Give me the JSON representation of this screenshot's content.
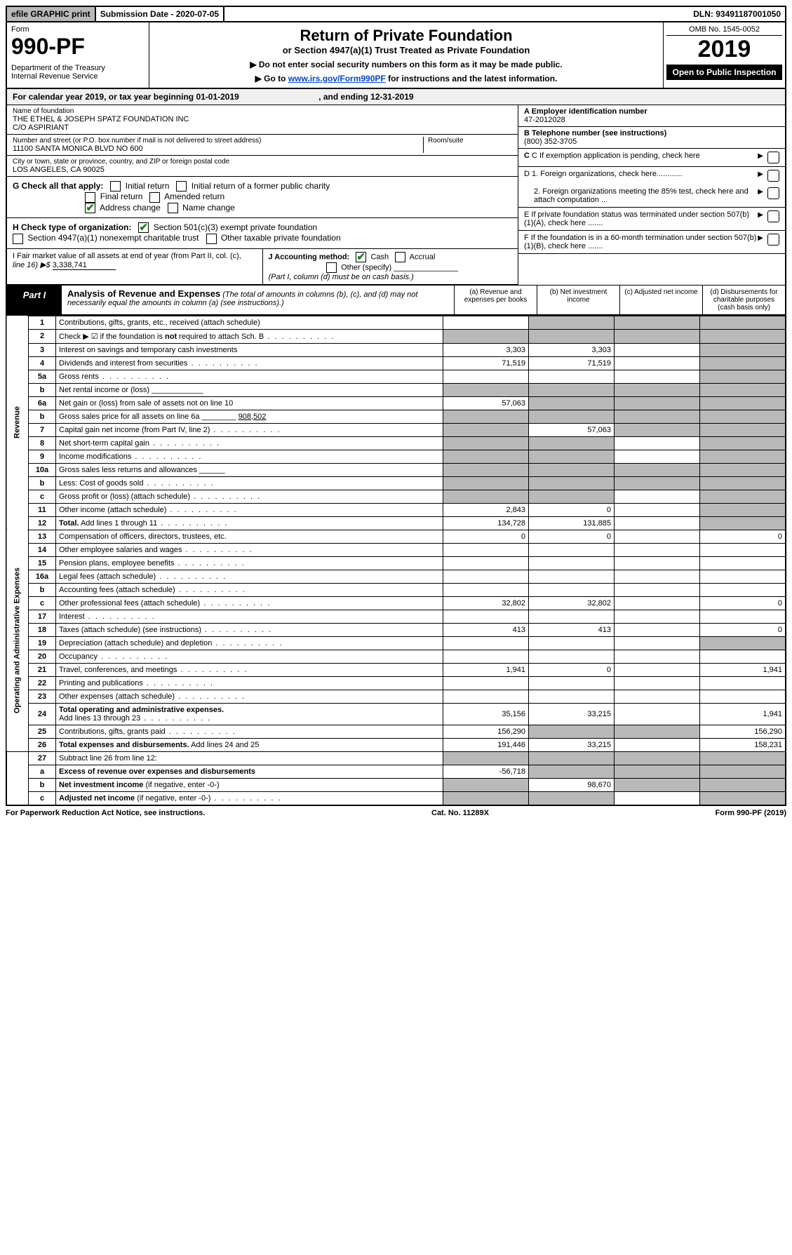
{
  "top": {
    "efile": "efile GRAPHIC print",
    "submission": "Submission Date - 2020-07-05",
    "dln": "DLN: 93491187001050"
  },
  "header": {
    "form_word": "Form",
    "form_num": "990-PF",
    "dept": "Department of the Treasury\nInternal Revenue Service",
    "title": "Return of Private Foundation",
    "subtitle": "or Section 4947(a)(1) Trust Treated as Private Foundation",
    "notice1": "▶ Do not enter social security numbers on this form as it may be made public.",
    "notice2_pre": "▶ Go to ",
    "notice2_link": "www.irs.gov/Form990PF",
    "notice2_post": " for instructions and the latest information.",
    "omb": "OMB No. 1545-0052",
    "year": "2019",
    "open": "Open to Public Inspection"
  },
  "calyear": "For calendar year 2019, or tax year beginning 01-01-2019                                  , and ending 12-31-2019",
  "info": {
    "name_label": "Name of foundation",
    "name": "THE ETHEL & JOSEPH SPATZ FOUNDATION INC\nC/O ASPIRIANT",
    "addr_label": "Number and street (or P.O. box number if mail is not delivered to street address)",
    "addr": "11100 SANTA MONICA BLVD NO 600",
    "room_label": "Room/suite",
    "city_label": "City or town, state or province, country, and ZIP or foreign postal code",
    "city": "LOS ANGELES, CA  90025",
    "a_label": "A Employer identification number",
    "a_val": "47-2012028",
    "b_label": "B Telephone number (see instructions)",
    "b_val": "(800) 352-3705",
    "c_label": "C If exemption application is pending, check here",
    "d1": "D 1. Foreign organizations, check here............",
    "d2": "2. Foreign organizations meeting the 85% test, check here and attach computation ...",
    "e": "E  If private foundation status was terminated under section 507(b)(1)(A), check here .......",
    "f": "F  If the foundation is in a 60-month termination under section 507(b)(1)(B), check here ......."
  },
  "g": {
    "label": "G Check all that apply:",
    "opts": [
      "Initial return",
      "Initial return of a former public charity",
      "Final return",
      "Amended return",
      "Address change",
      "Name change"
    ]
  },
  "h": {
    "label": "H Check type of organization:",
    "opt1": "Section 501(c)(3) exempt private foundation",
    "opt2": "Section 4947(a)(1) nonexempt charitable trust",
    "opt3": "Other taxable private foundation"
  },
  "i": {
    "label": "I Fair market value of all assets at end of year (from Part II, col. (c),",
    "line16": "line 16) ▶$ ",
    "val": "3,338,741"
  },
  "j": {
    "label": "J Accounting method:",
    "cash": "Cash",
    "accrual": "Accrual",
    "other": "Other (specify)",
    "note": "(Part I, column (d) must be on cash basis.)"
  },
  "part1": {
    "tab": "Part I",
    "desc_b": "Analysis of Revenue and Expenses",
    "desc_i": " (The total of amounts in columns (b), (c), and (d) may not necessarily equal the amounts in column (a) (see instructions).)",
    "col_a": "(a)    Revenue and expenses per books",
    "col_b": "(b)   Net investment income",
    "col_c": "(c)   Adjusted net income",
    "col_d": "(d)   Disbursements for charitable purposes (cash basis only)"
  },
  "rows": [
    {
      "sec": "rev",
      "n": "1",
      "d": "Contributions, gifts, grants, etc., received (attach schedule)",
      "a": "",
      "b": "grey",
      "c": "grey",
      "e": "grey"
    },
    {
      "sec": "rev",
      "n": "2",
      "d": "Check ▶ ☑ if the foundation is <b>not</b> required to attach Sch. B",
      "dots": true,
      "a": "grey",
      "b": "grey",
      "c": "grey",
      "e": "grey"
    },
    {
      "sec": "rev",
      "n": "3",
      "d": "Interest on savings and temporary cash investments",
      "a": "3,303",
      "b": "3,303",
      "c": "",
      "e": "grey"
    },
    {
      "sec": "rev",
      "n": "4",
      "d": "Dividends and interest from securities",
      "dots": true,
      "a": "71,519",
      "b": "71,519",
      "c": "",
      "e": "grey"
    },
    {
      "sec": "rev",
      "n": "5a",
      "d": "Gross rents",
      "dots": true,
      "a": "",
      "b": "",
      "c": "",
      "e": "grey"
    },
    {
      "sec": "rev",
      "n": "b",
      "d": "Net rental income or (loss) ____________",
      "a": "grey",
      "b": "grey",
      "c": "grey",
      "e": "grey"
    },
    {
      "sec": "rev",
      "n": "6a",
      "d": "Net gain or (loss) from sale of assets not on line 10",
      "a": "57,063",
      "b": "grey",
      "c": "grey",
      "e": "grey"
    },
    {
      "sec": "rev",
      "n": "b",
      "d": "Gross sales price for all assets on line 6a ________ <u>908,502</u>",
      "a": "grey",
      "b": "grey",
      "c": "grey",
      "e": "grey"
    },
    {
      "sec": "rev",
      "n": "7",
      "d": "Capital gain net income (from Part IV, line 2)",
      "dots": true,
      "a": "grey",
      "b": "57,063",
      "c": "grey",
      "e": "grey"
    },
    {
      "sec": "rev",
      "n": "8",
      "d": "Net short-term capital gain",
      "dots": true,
      "a": "grey",
      "b": "grey",
      "c": "",
      "e": "grey"
    },
    {
      "sec": "rev",
      "n": "9",
      "d": "Income modifications",
      "dots": true,
      "a": "grey",
      "b": "grey",
      "c": "",
      "e": "grey"
    },
    {
      "sec": "rev",
      "n": "10a",
      "d": "Gross sales less returns and allowances ______",
      "a": "grey",
      "b": "grey",
      "c": "grey",
      "e": "grey"
    },
    {
      "sec": "rev",
      "n": "b",
      "d": "Less: Cost of goods sold",
      "dots": true,
      "a": "grey",
      "b": "grey",
      "c": "grey",
      "e": "grey"
    },
    {
      "sec": "rev",
      "n": "c",
      "d": "Gross profit or (loss) (attach schedule)",
      "dots": true,
      "a": "grey",
      "b": "grey",
      "c": "",
      "e": "grey"
    },
    {
      "sec": "rev",
      "n": "11",
      "d": "Other income (attach schedule)",
      "dots": true,
      "a": "2,843",
      "b": "0",
      "c": "",
      "e": "grey"
    },
    {
      "sec": "rev",
      "n": "12",
      "d": "<b>Total.</b> Add lines 1 through 11",
      "dots": true,
      "a": "134,728",
      "b": "131,885",
      "c": "",
      "e": "grey"
    },
    {
      "sec": "exp",
      "n": "13",
      "d": "Compensation of officers, directors, trustees, etc.",
      "a": "0",
      "b": "0",
      "c": "",
      "e": "0"
    },
    {
      "sec": "exp",
      "n": "14",
      "d": "Other employee salaries and wages",
      "dots": true,
      "a": "",
      "b": "",
      "c": "",
      "e": ""
    },
    {
      "sec": "exp",
      "n": "15",
      "d": "Pension plans, employee benefits",
      "dots": true,
      "a": "",
      "b": "",
      "c": "",
      "e": ""
    },
    {
      "sec": "exp",
      "n": "16a",
      "d": "Legal fees (attach schedule)",
      "dots": true,
      "a": "",
      "b": "",
      "c": "",
      "e": ""
    },
    {
      "sec": "exp",
      "n": "b",
      "d": "Accounting fees (attach schedule)",
      "dots": true,
      "a": "",
      "b": "",
      "c": "",
      "e": ""
    },
    {
      "sec": "exp",
      "n": "c",
      "d": "Other professional fees (attach schedule)",
      "dots": true,
      "a": "32,802",
      "b": "32,802",
      "c": "",
      "e": "0"
    },
    {
      "sec": "exp",
      "n": "17",
      "d": "Interest",
      "dots": true,
      "a": "",
      "b": "",
      "c": "",
      "e": ""
    },
    {
      "sec": "exp",
      "n": "18",
      "d": "Taxes (attach schedule) (see instructions)",
      "dots": true,
      "a": "413",
      "b": "413",
      "c": "",
      "e": "0"
    },
    {
      "sec": "exp",
      "n": "19",
      "d": "Depreciation (attach schedule) and depletion",
      "dots": true,
      "a": "",
      "b": "",
      "c": "",
      "e": "grey"
    },
    {
      "sec": "exp",
      "n": "20",
      "d": "Occupancy",
      "dots": true,
      "a": "",
      "b": "",
      "c": "",
      "e": ""
    },
    {
      "sec": "exp",
      "n": "21",
      "d": "Travel, conferences, and meetings",
      "dots": true,
      "a": "1,941",
      "b": "0",
      "c": "",
      "e": "1,941"
    },
    {
      "sec": "exp",
      "n": "22",
      "d": "Printing and publications",
      "dots": true,
      "a": "",
      "b": "",
      "c": "",
      "e": ""
    },
    {
      "sec": "exp",
      "n": "23",
      "d": "Other expenses (attach schedule)",
      "dots": true,
      "a": "",
      "b": "",
      "c": "",
      "e": ""
    },
    {
      "sec": "exp",
      "n": "24",
      "d": "<b>Total operating and administrative expenses.</b><br>Add lines 13 through 23",
      "dots": true,
      "a": "35,156",
      "b": "33,215",
      "c": "",
      "e": "1,941"
    },
    {
      "sec": "exp",
      "n": "25",
      "d": "Contributions, gifts, grants paid",
      "dots": true,
      "a": "156,290",
      "b": "grey",
      "c": "grey",
      "e": "156,290"
    },
    {
      "sec": "exp",
      "n": "26",
      "d": "<b>Total expenses and disbursements.</b> Add lines 24 and 25",
      "a": "191,446",
      "b": "33,215",
      "c": "",
      "e": "158,231"
    },
    {
      "sec": "tot",
      "n": "27",
      "d": "Subtract line 26 from line 12:",
      "a": "grey",
      "b": "grey",
      "c": "grey",
      "e": "grey"
    },
    {
      "sec": "tot",
      "n": "a",
      "d": "<b>Excess of revenue over expenses and disbursements</b>",
      "a": "-56,718",
      "b": "grey",
      "c": "grey",
      "e": "grey"
    },
    {
      "sec": "tot",
      "n": "b",
      "d": "<b>Net investment income</b> (if negative, enter -0-)",
      "a": "grey",
      "b": "98,670",
      "c": "grey",
      "e": "grey"
    },
    {
      "sec": "tot",
      "n": "c",
      "d": "<b>Adjusted net income</b> (if negative, enter -0-)",
      "dots": true,
      "a": "grey",
      "b": "grey",
      "c": "",
      "e": "grey"
    }
  ],
  "footer": {
    "left": "For Paperwork Reduction Act Notice, see instructions.",
    "mid": "Cat. No. 11289X",
    "right": "Form 990-PF (2019)"
  }
}
